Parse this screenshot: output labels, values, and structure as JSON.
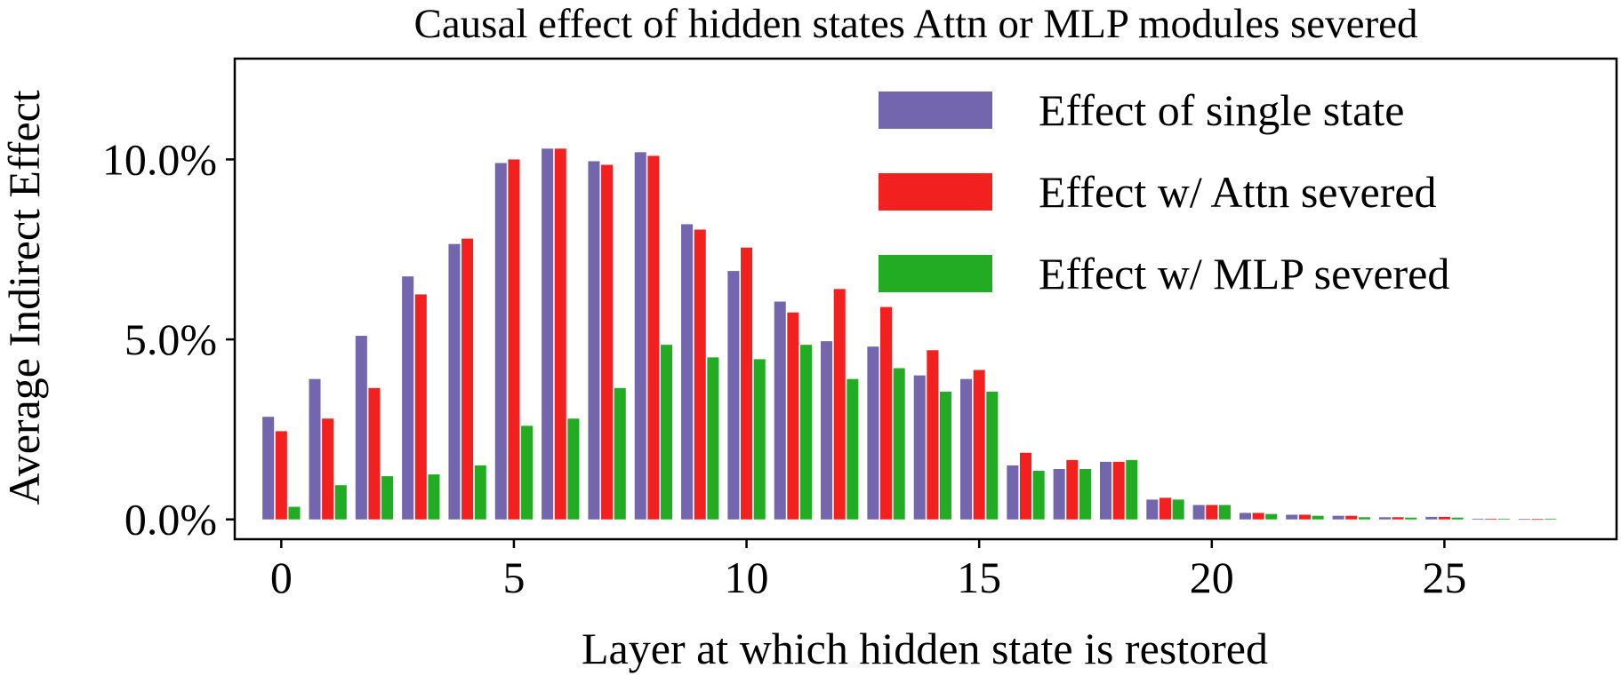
{
  "chart_data": {
    "type": "bar",
    "title": "Causal effect of hidden states Attn or MLP modules severed",
    "xlabel": "Layer at which hidden state is restored",
    "ylabel": "Average Indirect Effect",
    "x": [
      0,
      1,
      2,
      3,
      4,
      5,
      6,
      7,
      8,
      9,
      10,
      11,
      12,
      13,
      14,
      15,
      16,
      17,
      18,
      19,
      20,
      21,
      22,
      23,
      24,
      25,
      26,
      27
    ],
    "xticks": [
      0,
      5,
      10,
      15,
      20,
      25
    ],
    "xtick_labels": [
      "0",
      "5",
      "10",
      "15",
      "20",
      "25"
    ],
    "yticks": [
      0,
      5,
      10
    ],
    "ytick_labels": [
      "0.0%",
      "5.0%",
      "10.0%"
    ],
    "xlim": [
      -1,
      28.7
    ],
    "ylim": [
      -0.55,
      12.8
    ],
    "legend_position": "upper-right",
    "series": [
      {
        "name": "Effect of single state",
        "color": "#7466ae",
        "values": [
          2.85,
          3.9,
          5.1,
          6.75,
          7.65,
          9.9,
          10.3,
          9.95,
          10.2,
          8.2,
          6.9,
          6.05,
          4.95,
          4.8,
          4.0,
          3.9,
          1.5,
          1.4,
          1.6,
          0.55,
          0.4,
          0.18,
          0.13,
          0.1,
          0.06,
          0.07,
          0.02,
          0.01
        ]
      },
      {
        "name": "Effect w/ Attn severed",
        "color": "#f2201e",
        "values": [
          2.45,
          2.8,
          3.65,
          6.25,
          7.8,
          10.0,
          10.3,
          9.85,
          10.1,
          8.05,
          7.55,
          5.75,
          6.4,
          5.9,
          4.7,
          4.15,
          1.85,
          1.65,
          1.6,
          0.6,
          0.4,
          0.18,
          0.13,
          0.1,
          0.06,
          0.07,
          0.02,
          0.01
        ]
      },
      {
        "name": "Effect w/ MLP severed",
        "color": "#22ac24",
        "values": [
          0.35,
          0.95,
          1.2,
          1.25,
          1.5,
          2.6,
          2.8,
          3.65,
          4.85,
          4.5,
          4.45,
          4.85,
          3.9,
          4.2,
          3.55,
          3.55,
          1.35,
          1.4,
          1.65,
          0.55,
          0.4,
          0.15,
          0.1,
          0.06,
          0.05,
          0.05,
          0.02,
          0.02
        ]
      }
    ]
  }
}
